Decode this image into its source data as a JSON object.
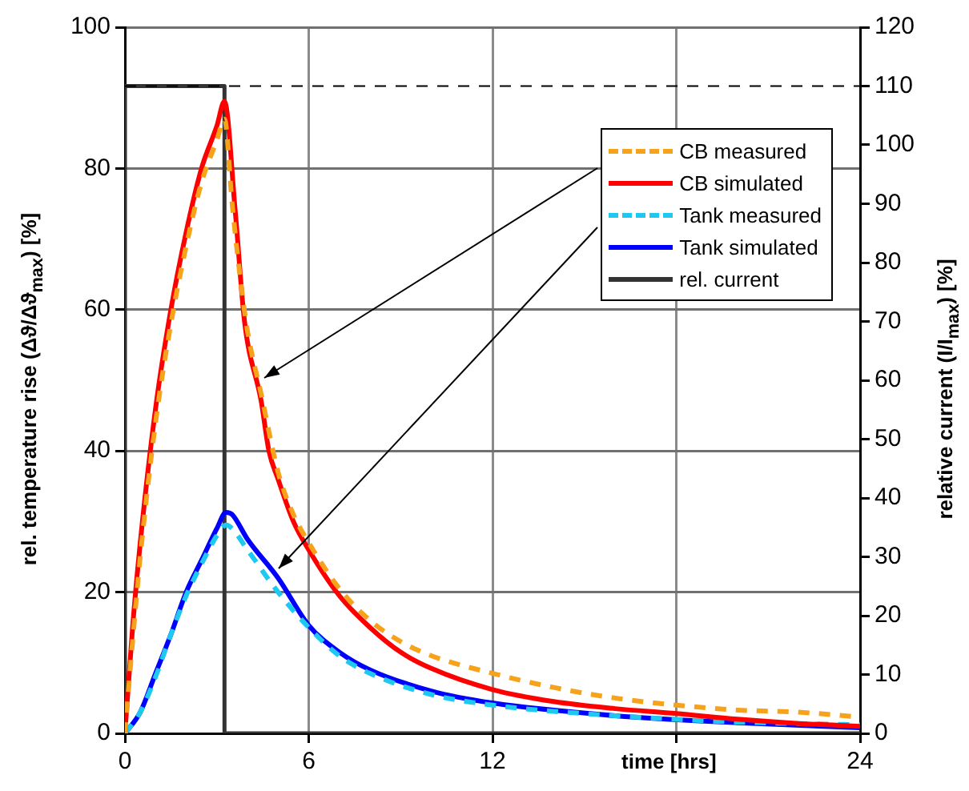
{
  "chart_data": {
    "type": "line",
    "xlabel": "time [hrs]",
    "ylabel": "rel. temperature rise (Δϑ/Δϑ$_{max}$) [%]",
    "y2label": "relative current (I/I$_{max}$) [%]",
    "xlim": [
      0,
      24
    ],
    "xticks": [
      0,
      6,
      12,
      {
        "value": 18,
        "label": null
      },
      24
    ],
    "ylim": [
      0,
      100
    ],
    "yticks": [
      0,
      20,
      40,
      60,
      80,
      100
    ],
    "y2lim": [
      0,
      120
    ],
    "y2ticks": [
      0,
      10,
      20,
      30,
      40,
      50,
      60,
      70,
      80,
      90,
      100,
      110,
      120
    ],
    "grid": true,
    "legend": "top right",
    "marker": "none",
    "ref_lines": [
      {
        "axis": "y2",
        "value": 110,
        "color": "#000000",
        "line_style": "dashed"
      }
    ],
    "series": [
      {
        "name": "CB measured",
        "color": "#f7a21b",
        "line_style": "dashed",
        "x": [
          0,
          0.25,
          0.5,
          1,
          1.5,
          2,
          2.5,
          3,
          3.25,
          3.5,
          3.75,
          4,
          4.45,
          5,
          5.5,
          6,
          7,
          8,
          9,
          10,
          12,
          14,
          16,
          18,
          20,
          22,
          24
        ],
        "values": [
          0,
          13,
          25,
          44,
          58,
          69,
          78,
          84,
          87,
          75,
          65,
          57,
          48,
          37,
          31,
          27,
          20.5,
          16,
          13,
          11,
          8.5,
          6.5,
          5,
          4,
          3.3,
          3,
          2.3
        ]
      },
      {
        "name": "CB simulated",
        "color": "#ff0000",
        "line_style": "solid",
        "x": [
          0,
          0.25,
          0.5,
          1,
          1.5,
          2,
          2.5,
          3,
          3.25,
          3.6,
          3.9,
          4.45,
          4.7,
          5,
          5.5,
          6,
          7,
          8,
          9,
          10,
          12,
          14,
          16,
          18,
          20,
          22,
          24
        ],
        "values": [
          0,
          15,
          27,
          46,
          60,
          71,
          80,
          86,
          89.5,
          74,
          58.5,
          47,
          40,
          36,
          30,
          26,
          19.5,
          15,
          11.5,
          9.2,
          6.2,
          4.5,
          3.5,
          2.8,
          2,
          1.4,
          1
        ]
      },
      {
        "name": "Tank measured",
        "color": "#1ec8f0",
        "line_style": "dashed",
        "x": [
          0,
          0.5,
          1,
          1.5,
          2,
          2.5,
          3,
          3.3,
          3.5,
          4,
          5,
          6,
          7,
          8,
          10,
          12,
          16,
          20,
          24
        ],
        "values": [
          0,
          3,
          8,
          14,
          19.5,
          24,
          28,
          29.5,
          29,
          26,
          20,
          15,
          11,
          8.5,
          5.5,
          4,
          2.5,
          1.6,
          1.2
        ]
      },
      {
        "name": "Tank simulated",
        "color": "#0000ff",
        "line_style": "solid",
        "x": [
          0,
          0.5,
          1,
          1.5,
          2,
          2.5,
          3,
          3.3,
          3.5,
          4,
          5,
          6,
          7,
          8,
          10,
          12,
          16,
          20,
          24
        ],
        "values": [
          0,
          3,
          8.5,
          14,
          20,
          24.5,
          29,
          31.3,
          31,
          27.5,
          22,
          15.3,
          11.5,
          9,
          6,
          4.3,
          2.5,
          1.5,
          0.8
        ]
      },
      {
        "name": "rel. current",
        "color": "#333333",
        "line_style": "solid",
        "axis": "y2",
        "x": [
          0,
          0,
          3.25,
          3.25,
          24
        ],
        "values": [
          0,
          110,
          110,
          0,
          0
        ]
      }
    ]
  }
}
